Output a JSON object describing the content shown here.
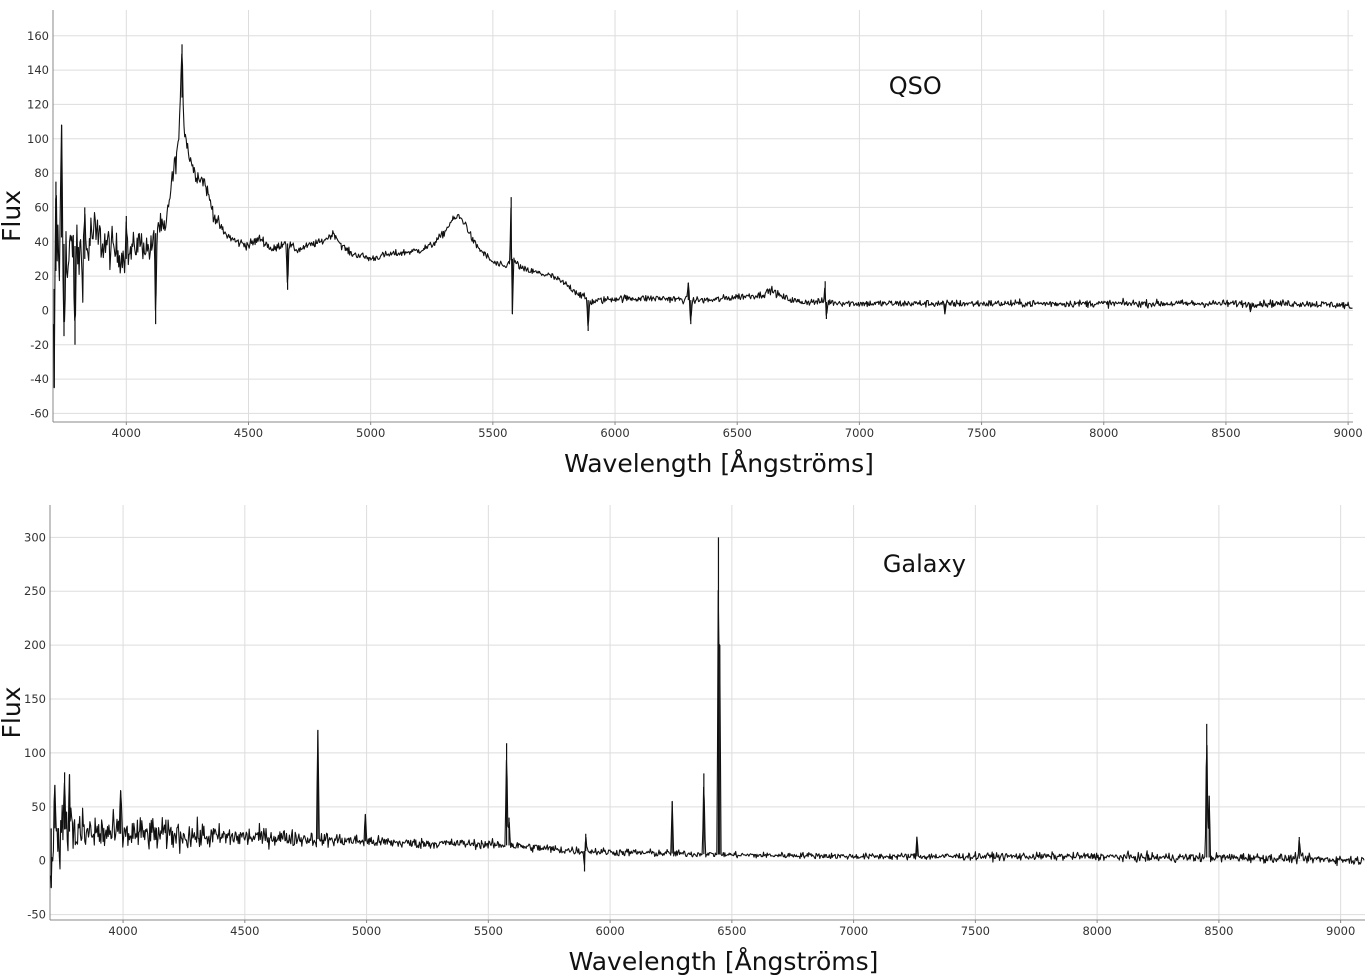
{
  "chart_data": [
    {
      "type": "line",
      "annotation": "QSO",
      "xlabel": "Wavelength [Ångströms]",
      "ylabel": "Flux",
      "xlim": [
        3700,
        9020
      ],
      "ylim": [
        -65,
        175
      ],
      "xticks": [
        4000,
        4500,
        5000,
        5500,
        6000,
        6500,
        7000,
        7500,
        8000,
        8500,
        9000
      ],
      "yticks": [
        -60,
        -40,
        -20,
        0,
        20,
        40,
        60,
        80,
        100,
        120,
        140,
        160
      ],
      "grid": true,
      "series": [
        {
          "line_color": "#111111",
          "x": [
            3700,
            3720,
            3740,
            3760,
            3780,
            3800,
            3830,
            3860,
            3900,
            3950,
            4000,
            4050,
            4100,
            4130,
            4160,
            4180,
            4200,
            4215,
            4225,
            4235,
            4250,
            4280,
            4320,
            4360,
            4400,
            4450,
            4500,
            4550,
            4600,
            4650,
            4700,
            4750,
            4800,
            4850,
            4880,
            4920,
            4960,
            5000,
            5050,
            5100,
            5150,
            5200,
            5250,
            5300,
            5330,
            5360,
            5390,
            5420,
            5450,
            5500,
            5550,
            5580,
            5620,
            5680,
            5740,
            5800,
            5850,
            5900,
            5950,
            6000,
            6100,
            6200,
            6300,
            6400,
            6500,
            6600,
            6640,
            6680,
            6750,
            6850,
            7000,
            7200,
            7400,
            7600,
            7800,
            8000,
            8200,
            8400,
            8600,
            8800,
            9000,
            9020
          ],
          "y": [
            5,
            35,
            45,
            20,
            40,
            35,
            30,
            45,
            40,
            35,
            30,
            40,
            35,
            50,
            45,
            70,
            85,
            100,
            130,
            110,
            95,
            80,
            75,
            55,
            45,
            40,
            38,
            42,
            35,
            40,
            35,
            38,
            40,
            45,
            38,
            33,
            32,
            30,
            32,
            33,
            34,
            35,
            38,
            45,
            52,
            55,
            50,
            40,
            35,
            28,
            25,
            30,
            24,
            22,
            20,
            15,
            10,
            5,
            6,
            7,
            7,
            7,
            6,
            6,
            8,
            9,
            12,
            8,
            5,
            5,
            4,
            4,
            4,
            4,
            4,
            4,
            4,
            4,
            4,
            4,
            3,
            0
          ],
          "noise": [
            30,
            28,
            24,
            20,
            18,
            16,
            14,
            12,
            10,
            8,
            7,
            6,
            6,
            6,
            5,
            5,
            5,
            4,
            4,
            4,
            4,
            3,
            3,
            3,
            2,
            2,
            2,
            2,
            2,
            1.5,
            1.5,
            1.5,
            1.5,
            1.5,
            1.5,
            1.5,
            1.5,
            1.5,
            1.5,
            1.5,
            1.5,
            1.5,
            1.5,
            1.5,
            1.5,
            1.5,
            1.5,
            1.5,
            1.5,
            1.5,
            1.5,
            1.5,
            1.5,
            1.5,
            1.5,
            1.5,
            1.5,
            1.5,
            1.5,
            1.5,
            1.5,
            1.5,
            1.5,
            1.5,
            1.5,
            1.5,
            1.5,
            1.5,
            1.5,
            1.5,
            1.5,
            1.5,
            1.5,
            1.5,
            1.5,
            1.5,
            1.5,
            1.5,
            1.5,
            1.5,
            1.5,
            1.5
          ],
          "spikes": [
            [
              3705,
              -45
            ],
            [
              3712,
              75
            ],
            [
              3735,
              108
            ],
            [
              3745,
              -15
            ],
            [
              3790,
              -20
            ],
            [
              3830,
              60
            ],
            [
              4000,
              55
            ],
            [
              4120,
              -8
            ],
            [
              4228,
              155
            ],
            [
              4660,
              12
            ],
            [
              5575,
              66
            ],
            [
              5580,
              -2
            ],
            [
              5890,
              -12
            ],
            [
              6300,
              16
            ],
            [
              6310,
              -8
            ],
            [
              6860,
              17
            ],
            [
              6865,
              -5
            ],
            [
              7350,
              -2
            ],
            [
              8600,
              -1
            ],
            [
              9010,
              1
            ]
          ]
        }
      ]
    },
    {
      "type": "line",
      "annotation": "Galaxy",
      "xlabel": "Wavelength [Ångströms]",
      "ylabel": "Flux",
      "xlim": [
        3700,
        9100
      ],
      "ylim": [
        -55,
        330
      ],
      "xticks": [
        4000,
        4500,
        5000,
        5500,
        6000,
        6500,
        7000,
        7500,
        8000,
        8500,
        9000
      ],
      "yticks": [
        -50,
        0,
        50,
        100,
        150,
        200,
        250,
        300
      ],
      "grid": true,
      "series": [
        {
          "line_color": "#111111",
          "x": [
            3700,
            3750,
            3800,
            3900,
            4000,
            4200,
            4400,
            4600,
            4800,
            5000,
            5200,
            5400,
            5600,
            5700,
            5800,
            6000,
            6200,
            6400,
            6600,
            6800,
            7000,
            7500,
            8000,
            8200,
            8400,
            8600,
            8800,
            9000,
            9100
          ],
          "y": [
            30,
            30,
            25,
            25,
            25,
            24,
            22,
            22,
            20,
            18,
            16,
            16,
            14,
            12,
            10,
            8,
            7,
            6,
            5,
            5,
            4,
            4,
            4,
            3,
            3,
            3,
            2,
            1,
            0
          ],
          "noise": [
            25,
            22,
            18,
            15,
            12,
            10,
            8,
            6,
            5,
            4,
            3.5,
            3,
            3,
            3,
            3,
            2.5,
            2.5,
            2,
            2,
            2,
            2,
            2.5,
            2.5,
            3,
            3,
            3,
            3,
            3,
            3
          ],
          "spikes": [
            [
              3705,
              -25
            ],
            [
              3720,
              70
            ],
            [
              3760,
              82
            ],
            [
              3780,
              80
            ],
            [
              3990,
              65
            ],
            [
              4800,
              121
            ],
            [
              4995,
              43
            ],
            [
              5575,
              109
            ],
            [
              5585,
              40
            ],
            [
              5895,
              -10
            ],
            [
              5900,
              25
            ],
            [
              6255,
              55
            ],
            [
              6385,
              81
            ],
            [
              6445,
              300
            ],
            [
              6450,
              200
            ],
            [
              7260,
              22
            ],
            [
              8450,
              127
            ],
            [
              8460,
              60
            ],
            [
              8830,
              22
            ]
          ]
        }
      ]
    }
  ]
}
